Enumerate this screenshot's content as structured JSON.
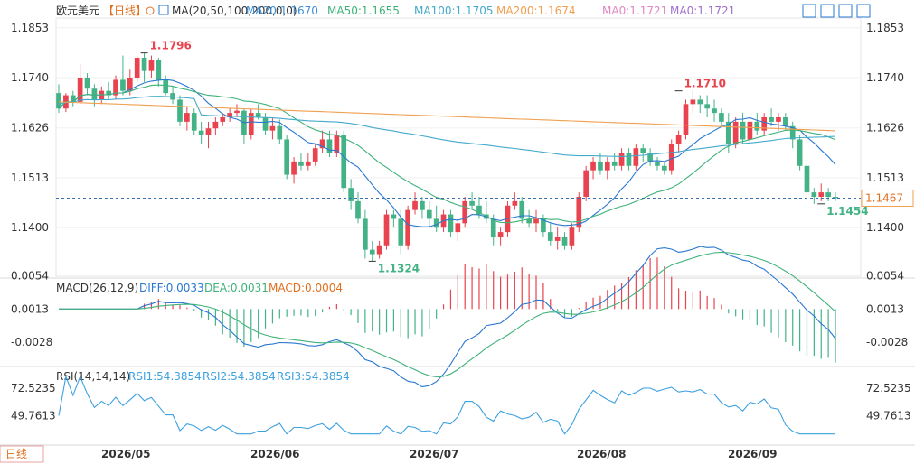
{
  "header": {
    "symbol": "欧元美元",
    "period": "【日线】",
    "ma_label": "MA(20,50,100,200,0,0)",
    "ma_values": [
      {
        "text": "MA20:1.1670",
        "color": "#3d8fd8"
      },
      {
        "text": "MA50:1.1655",
        "color": "#3fb27a"
      },
      {
        "text": "MA100:1.1705",
        "color": "#44aacc"
      },
      {
        "text": "MA200:1.1674",
        "color": "#f0a050"
      },
      {
        "text": "MA0:1.1721",
        "color": "#e088c0"
      },
      {
        "text": "MA0:1.1721",
        "color": "#a070d0"
      }
    ],
    "toolbar_icons": [
      "expand-icon",
      "shrink-icon",
      "fit-icon",
      "restore-icon"
    ]
  },
  "y_ticks": [
    "1.1853",
    "1.1740",
    "1.1626",
    "1.1513",
    "1.1400"
  ],
  "current_price": "1.1467",
  "annotations": {
    "high1": "1.1796",
    "low1": "1.1324",
    "high2": "1.1710",
    "low2": "1.1454"
  },
  "macd": {
    "title": "MACD(26,12,9)",
    "diff": "DIFF:0.0033",
    "dea": "DEA:0.0031",
    "macd": "MACD:0.0004",
    "ticks": [
      "0.0054",
      "0.0013",
      "-0.0028"
    ]
  },
  "rsi": {
    "title": "RSI(14,14,14)",
    "rsi1": "RSI1:54.3854",
    "rsi2": "RSI2:54.3854",
    "rsi3": "RSI3:54.3854",
    "ticks": [
      "72.5235",
      "49.7613"
    ]
  },
  "footer": {
    "period_button": "日线"
  },
  "x_labels": [
    "2026/05",
    "2026/06",
    "2026/07",
    "2026/08",
    "2026/09"
  ],
  "colors": {
    "up": "#e8434e",
    "down": "#43b387",
    "diff": "#2a78d0",
    "dea": "#3fb27a",
    "rsi": "#3da0e0"
  },
  "chart_data": {
    "type": "candlestick",
    "ylim": [
      1.129,
      1.1875
    ],
    "candles": [
      [
        1.1705,
        1.1725,
        1.166,
        1.167
      ],
      [
        1.167,
        1.1705,
        1.1662,
        1.17
      ],
      [
        1.17,
        1.171,
        1.1675,
        1.1685
      ],
      [
        1.1685,
        1.177,
        1.168,
        1.174
      ],
      [
        1.174,
        1.175,
        1.17,
        1.1715
      ],
      [
        1.1715,
        1.1725,
        1.1675,
        1.169
      ],
      [
        1.169,
        1.172,
        1.168,
        1.171
      ],
      [
        1.171,
        1.173,
        1.169,
        1.17
      ],
      [
        1.17,
        1.1745,
        1.169,
        1.1735
      ],
      [
        1.1735,
        1.179,
        1.17,
        1.171
      ],
      [
        1.171,
        1.176,
        1.17,
        1.174
      ],
      [
        1.174,
        1.179,
        1.173,
        1.1785
      ],
      [
        1.1785,
        1.1796,
        1.173,
        1.1755
      ],
      [
        1.1755,
        1.179,
        1.174,
        1.178
      ],
      [
        1.178,
        1.1785,
        1.172,
        1.1735
      ],
      [
        1.1735,
        1.1745,
        1.17,
        1.1705
      ],
      [
        1.1705,
        1.172,
        1.168,
        1.169
      ],
      [
        1.169,
        1.17,
        1.163,
        1.164
      ],
      [
        1.164,
        1.1675,
        1.162,
        1.166
      ],
      [
        1.166,
        1.167,
        1.161,
        1.162
      ],
      [
        1.162,
        1.164,
        1.159,
        1.161
      ],
      [
        1.161,
        1.164,
        1.158,
        1.1625
      ],
      [
        1.1625,
        1.165,
        1.161,
        1.164
      ],
      [
        1.164,
        1.166,
        1.163,
        1.165
      ],
      [
        1.165,
        1.167,
        1.164,
        1.166
      ],
      [
        1.166,
        1.168,
        1.165,
        1.1665
      ],
      [
        1.1665,
        1.167,
        1.159,
        1.161
      ],
      [
        1.161,
        1.167,
        1.16,
        1.166
      ],
      [
        1.166,
        1.168,
        1.1645,
        1.165
      ],
      [
        1.165,
        1.166,
        1.161,
        1.162
      ],
      [
        1.162,
        1.165,
        1.16,
        1.163
      ],
      [
        1.163,
        1.1645,
        1.159,
        1.16
      ],
      [
        1.16,
        1.161,
        1.151,
        1.152
      ],
      [
        1.152,
        1.156,
        1.15,
        1.155
      ],
      [
        1.155,
        1.157,
        1.153,
        1.154
      ],
      [
        1.154,
        1.157,
        1.153,
        1.155
      ],
      [
        1.155,
        1.159,
        1.154,
        1.158
      ],
      [
        1.158,
        1.162,
        1.157,
        1.16
      ],
      [
        1.16,
        1.162,
        1.156,
        1.157
      ],
      [
        1.157,
        1.162,
        1.156,
        1.161
      ],
      [
        1.161,
        1.162,
        1.148,
        1.149
      ],
      [
        1.149,
        1.151,
        1.144,
        1.146
      ],
      [
        1.146,
        1.148,
        1.141,
        1.142
      ],
      [
        1.142,
        1.144,
        1.133,
        1.135
      ],
      [
        1.135,
        1.137,
        1.1324,
        1.134
      ],
      [
        1.134,
        1.137,
        1.133,
        1.136
      ],
      [
        1.136,
        1.144,
        1.135,
        1.143
      ],
      [
        1.143,
        1.144,
        1.14,
        1.142
      ],
      [
        1.142,
        1.144,
        1.134,
        1.136
      ],
      [
        1.136,
        1.145,
        1.135,
        1.144
      ],
      [
        1.144,
        1.148,
        1.143,
        1.146
      ],
      [
        1.146,
        1.147,
        1.142,
        1.144
      ],
      [
        1.144,
        1.146,
        1.14,
        1.142
      ],
      [
        1.142,
        1.145,
        1.139,
        1.14
      ],
      [
        1.14,
        1.144,
        1.139,
        1.143
      ],
      [
        1.143,
        1.144,
        1.138,
        1.139
      ],
      [
        1.139,
        1.142,
        1.137,
        1.141
      ],
      [
        1.141,
        1.147,
        1.14,
        1.146
      ],
      [
        1.146,
        1.148,
        1.144,
        1.145
      ],
      [
        1.145,
        1.147,
        1.142,
        1.143
      ],
      [
        1.143,
        1.146,
        1.141,
        1.142
      ],
      [
        1.142,
        1.143,
        1.136,
        1.138
      ],
      [
        1.138,
        1.14,
        1.136,
        1.139
      ],
      [
        1.139,
        1.146,
        1.138,
        1.145
      ],
      [
        1.145,
        1.148,
        1.144,
        1.146
      ],
      [
        1.146,
        1.147,
        1.141,
        1.142
      ],
      [
        1.142,
        1.144,
        1.14,
        1.141
      ],
      [
        1.141,
        1.144,
        1.139,
        1.142
      ],
      [
        1.142,
        1.143,
        1.138,
        1.139
      ],
      [
        1.139,
        1.141,
        1.136,
        1.137
      ],
      [
        1.137,
        1.14,
        1.135,
        1.138
      ],
      [
        1.138,
        1.139,
        1.135,
        1.136
      ],
      [
        1.136,
        1.141,
        1.135,
        1.14
      ],
      [
        1.14,
        1.148,
        1.139,
        1.147
      ],
      [
        1.147,
        1.154,
        1.146,
        1.153
      ],
      [
        1.153,
        1.156,
        1.151,
        1.155
      ],
      [
        1.155,
        1.157,
        1.152,
        1.153
      ],
      [
        1.153,
        1.156,
        1.151,
        1.155
      ],
      [
        1.155,
        1.157,
        1.153,
        1.154
      ],
      [
        1.154,
        1.158,
        1.153,
        1.157
      ],
      [
        1.157,
        1.158,
        1.153,
        1.154
      ],
      [
        1.154,
        1.159,
        1.153,
        1.158
      ],
      [
        1.158,
        1.159,
        1.155,
        1.157
      ],
      [
        1.157,
        1.158,
        1.154,
        1.155
      ],
      [
        1.155,
        1.156,
        1.153,
        1.154
      ],
      [
        1.154,
        1.155,
        1.152,
        1.153
      ],
      [
        1.153,
        1.16,
        1.152,
        1.159
      ],
      [
        1.159,
        1.162,
        1.157,
        1.161
      ],
      [
        1.161,
        1.169,
        1.16,
        1.168
      ],
      [
        1.168,
        1.171,
        1.166,
        1.169
      ],
      [
        1.169,
        1.17,
        1.166,
        1.168
      ],
      [
        1.168,
        1.17,
        1.165,
        1.167
      ],
      [
        1.167,
        1.169,
        1.164,
        1.166
      ],
      [
        1.166,
        1.167,
        1.163,
        1.164
      ],
      [
        1.164,
        1.166,
        1.157,
        1.159
      ],
      [
        1.159,
        1.165,
        1.158,
        1.164
      ],
      [
        1.164,
        1.166,
        1.159,
        1.16
      ],
      [
        1.16,
        1.165,
        1.159,
        1.164
      ],
      [
        1.164,
        1.166,
        1.161,
        1.162
      ],
      [
        1.162,
        1.166,
        1.161,
        1.165
      ],
      [
        1.165,
        1.167,
        1.163,
        1.164
      ],
      [
        1.164,
        1.166,
        1.162,
        1.165
      ],
      [
        1.165,
        1.166,
        1.162,
        1.163
      ],
      [
        1.163,
        1.164,
        1.158,
        1.16
      ],
      [
        1.16,
        1.161,
        1.153,
        1.154
      ],
      [
        1.154,
        1.156,
        1.147,
        1.148
      ],
      [
        1.148,
        1.149,
        1.1454,
        1.147
      ],
      [
        1.147,
        1.15,
        1.146,
        1.148
      ],
      [
        1.148,
        1.149,
        1.146,
        1.147
      ],
      [
        1.147,
        1.148,
        1.146,
        1.1467
      ]
    ]
  }
}
